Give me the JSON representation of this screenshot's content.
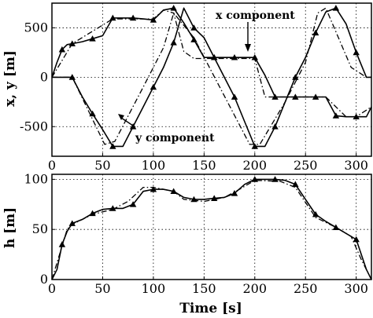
{
  "chart_data": [
    {
      "type": "line",
      "ylabel": "x, y [m]",
      "xlabel": "",
      "xlim": [
        0,
        315
      ],
      "ylim": [
        -800,
        750
      ],
      "xticks": [
        0,
        50,
        100,
        150,
        200,
        250,
        300
      ],
      "yticks": [
        -500,
        0,
        500
      ],
      "grid": true,
      "annotations": [
        {
          "text": "x component",
          "arrow_to": [
            310,
            140
          ]
        },
        {
          "text": "y component",
          "arrow_to": [
            97,
            335
          ]
        }
      ],
      "series": [
        {
          "style": "solid-triangle",
          "x": [
            0,
            5,
            10,
            15,
            20,
            30,
            40,
            50,
            60,
            70,
            80,
            90,
            100,
            110,
            120,
            130,
            140,
            150,
            160,
            170,
            180,
            190,
            200,
            210,
            220,
            230,
            240,
            250,
            260,
            270,
            280,
            290,
            300,
            310,
            315
          ],
          "y": [
            0,
            150,
            280,
            330,
            340,
            360,
            390,
            420,
            600,
            600,
            600,
            590,
            580,
            680,
            700,
            550,
            380,
            200,
            200,
            200,
            200,
            200,
            200,
            20,
            -200,
            -200,
            -200,
            -200,
            -200,
            -200,
            -390,
            -400,
            -400,
            -400,
            -300
          ]
        },
        {
          "style": "solid-triangle",
          "x": [
            0,
            10,
            20,
            30,
            40,
            50,
            60,
            70,
            80,
            90,
            100,
            110,
            120,
            130,
            140,
            150,
            160,
            170,
            180,
            190,
            200,
            210,
            220,
            230,
            240,
            250,
            260,
            270,
            280,
            290,
            300,
            310,
            315
          ],
          "y": [
            0,
            0,
            0,
            -200,
            -370,
            -530,
            -700,
            -700,
            -500,
            -300,
            -100,
            100,
            350,
            700,
            500,
            400,
            200,
            0,
            -200,
            -450,
            -700,
            -700,
            -500,
            -250,
            0,
            200,
            450,
            660,
            700,
            540,
            250,
            0,
            0
          ]
        },
        {
          "style": "dashdot",
          "x": [
            0,
            20,
            60,
            90,
            100,
            110,
            120,
            130,
            140,
            150,
            180,
            200,
            210,
            230,
            270,
            290,
            300,
            315
          ],
          "y": [
            0,
            340,
            590,
            590,
            590,
            680,
            650,
            260,
            190,
            190,
            190,
            190,
            -200,
            -200,
            -200,
            -400,
            -400,
            -300
          ]
        },
        {
          "style": "dashdot",
          "x": [
            0,
            20,
            52,
            62,
            90,
            110,
            120,
            140,
            195,
            205,
            230,
            250,
            262,
            270,
            295,
            310,
            315
          ],
          "y": [
            0,
            0,
            -680,
            -650,
            -100,
            300,
            650,
            400,
            -680,
            -680,
            -250,
            150,
            650,
            700,
            100,
            0,
            0
          ]
        }
      ]
    },
    {
      "type": "line",
      "ylabel": "h [m]",
      "xlabel": "Time [s]",
      "xlim": [
        0,
        315
      ],
      "ylim": [
        0,
        105
      ],
      "xticks": [
        0,
        50,
        100,
        150,
        200,
        250,
        300
      ],
      "yticks": [
        0,
        50,
        100
      ],
      "grid": true,
      "series": [
        {
          "style": "solid-triangle",
          "x": [
            0,
            5,
            10,
            15,
            20,
            30,
            40,
            50,
            60,
            70,
            80,
            90,
            100,
            110,
            120,
            130,
            140,
            150,
            160,
            170,
            180,
            190,
            200,
            210,
            220,
            230,
            240,
            250,
            260,
            270,
            280,
            290,
            300,
            310,
            315
          ],
          "y": [
            0,
            10,
            35,
            48,
            56,
            60,
            66,
            70,
            71,
            71,
            75,
            88,
            90,
            90,
            88,
            82,
            80,
            80,
            81,
            82,
            86,
            95,
            100,
            100,
            100,
            99,
            95,
            80,
            65,
            58,
            52,
            46,
            40,
            10,
            0
          ]
        },
        {
          "style": "dashdot",
          "x": [
            0,
            15,
            20,
            40,
            60,
            75,
            90,
            100,
            120,
            130,
            150,
            170,
            185,
            200,
            225,
            240,
            250,
            260,
            280,
            295,
            305,
            315
          ],
          "y": [
            0,
            50,
            55,
            65,
            70,
            78,
            92,
            92,
            88,
            80,
            78,
            82,
            90,
            99,
            98,
            92,
            77,
            62,
            52,
            43,
            20,
            0
          ]
        }
      ]
    }
  ]
}
